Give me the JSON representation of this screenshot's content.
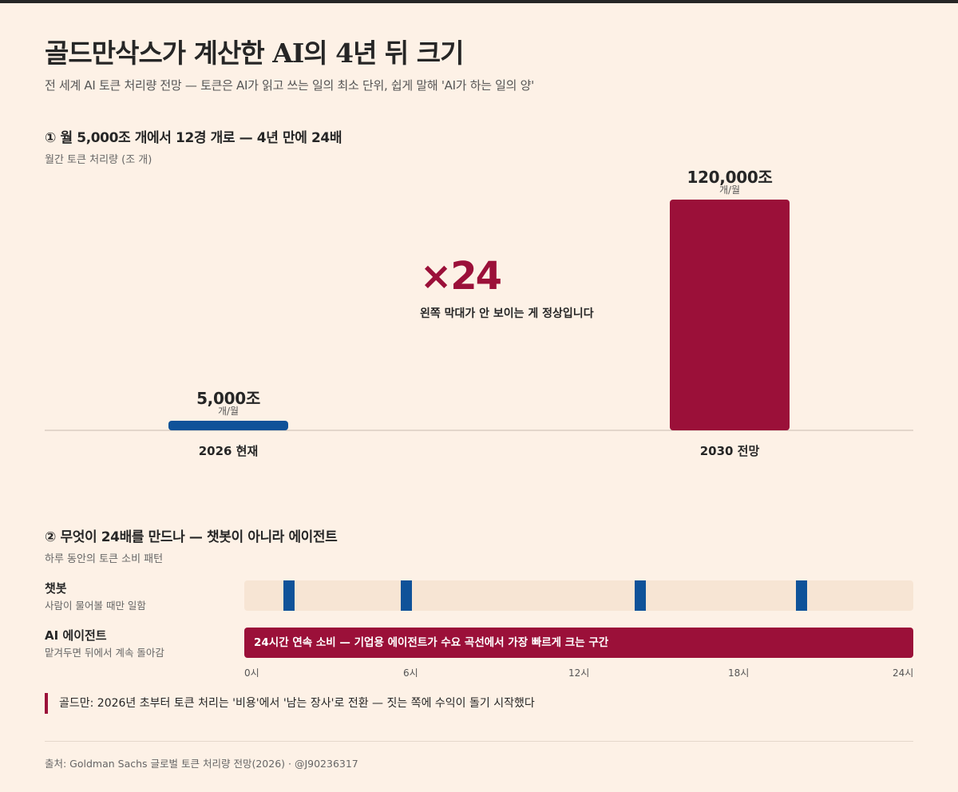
{
  "title": "골드만삭스가 계산한 AI의 4년 뒤 크기",
  "subtitle": "전 세계 AI 토큰 처리량 전망 — 토큰은 AI가 읽고 쓰는 일의 최소 단위, 쉽게 말해 'AI가 하는 일의 양'",
  "section1": {
    "title": "① 월 5,000조 개에서 12경 개로 — 4년 만에 24배",
    "subtitle": "월간 토큰 처리량 (조 개)"
  },
  "section2": {
    "title": "② 무엇이 24배를 만드나 — 챗봇이 아니라 에이전트",
    "subtitle": "하루 동안의 토큰 소비 패턴"
  },
  "chart_data": [
    {
      "type": "bar",
      "title": "① 월 5,000조 개에서 12경 개로 — 4년 만에 24배",
      "ylabel": "월간 토큰 처리량 (조 개)",
      "categories": [
        "2026 현재",
        "2030 전망"
      ],
      "values": [
        5000,
        120000
      ],
      "value_labels": [
        "5,000조",
        "120,000조"
      ],
      "unit_label": "개/월",
      "colors": [
        "#0f5299",
        "#9b1039"
      ],
      "ylim": [
        0,
        120000
      ],
      "grid": false,
      "annotation": {
        "value": "×24",
        "note": "왼쪽 막대가 안 보이는 게 정상입니다",
        "color": "#9b1039"
      }
    },
    {
      "type": "timeline",
      "title": "② 무엇이 24배를 만드나 — 챗봇이 아니라 에이전트",
      "subtitle": "하루 동안의 토큰 소비 패턴",
      "x_range": [
        0,
        24
      ],
      "x_ticks": [
        "0시",
        "6시",
        "12시",
        "18시",
        "24시"
      ],
      "rows": [
        {
          "name": "챗봇",
          "description": "사람이 물어볼 때만 일함",
          "color": "#0f5299",
          "pulses_hours": [
            1.6,
            5.8,
            14.2,
            20.0
          ]
        },
        {
          "name": "AI 에이전트",
          "description": "맡겨두면 뒤에서 계속 돌아감",
          "color": "#9b1039",
          "span_hours": [
            0,
            24
          ],
          "bar_label": "24시간 연속 소비 — 기업용 에이전트가 수요 곡선에서 가장 빠르게 크는 구간"
        }
      ]
    }
  ],
  "callout": "골드만: 2026년 초부터 토큰 처리는 '비용'에서 '남는 장사'로 전환 — 짓는 쪽에 수익이 돌기 시작했다",
  "source": "출처: Goldman Sachs 글로벌 토큰 처리량 전망(2026) · @J90236317",
  "colors": {
    "background": "#fdf1e6",
    "current": "#0f5299",
    "forecast": "#9b1039",
    "track": "#f7e5d4"
  }
}
